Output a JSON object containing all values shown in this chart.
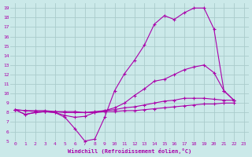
{
  "background_color": "#cbe9e9",
  "grid_color": "#aacccc",
  "line_color": "#aa00aa",
  "xlabel": "Windchill (Refroidissement éolien,°C)",
  "xlim": [
    -0.5,
    23.5
  ],
  "ylim": [
    5,
    19.5
  ],
  "xticks": [
    0,
    1,
    2,
    3,
    4,
    5,
    6,
    7,
    8,
    9,
    10,
    11,
    12,
    13,
    14,
    15,
    16,
    17,
    18,
    19,
    20,
    21,
    22,
    23
  ],
  "yticks": [
    5,
    6,
    7,
    8,
    9,
    10,
    11,
    12,
    13,
    14,
    15,
    16,
    17,
    18,
    19
  ],
  "s1x": [
    0,
    1,
    2,
    3,
    4,
    5,
    6,
    7,
    8,
    9,
    10,
    11,
    12,
    13,
    14,
    15,
    16,
    17,
    18,
    19,
    20,
    21,
    22
  ],
  "s1y": [
    8.3,
    7.8,
    8.0,
    8.1,
    8.0,
    7.5,
    6.3,
    5.0,
    5.2,
    7.5,
    10.3,
    12.1,
    13.5,
    15.1,
    17.3,
    18.2,
    17.8,
    18.5,
    19.0,
    19.0,
    16.8,
    10.3,
    9.3
  ],
  "s2x": [
    0,
    1,
    2,
    3,
    4,
    5,
    6,
    7,
    8,
    9,
    10,
    11,
    12,
    13,
    14,
    15,
    16,
    17,
    18,
    19,
    20,
    21,
    22
  ],
  "s2y": [
    8.3,
    7.8,
    8.0,
    8.1,
    8.0,
    7.7,
    7.5,
    7.6,
    8.0,
    8.2,
    8.5,
    9.0,
    9.8,
    10.5,
    11.3,
    11.5,
    12.0,
    12.5,
    12.8,
    13.0,
    12.2,
    10.3,
    9.3
  ],
  "s3x": [
    0,
    1,
    2,
    3,
    4,
    5,
    6,
    7,
    8,
    9,
    10,
    11,
    12,
    13,
    14,
    15,
    16,
    17,
    18,
    19,
    20,
    21,
    22
  ],
  "s3y": [
    8.3,
    8.2,
    8.2,
    8.2,
    8.1,
    8.1,
    8.1,
    8.0,
    8.1,
    8.2,
    8.3,
    8.5,
    8.6,
    8.8,
    9.0,
    9.2,
    9.3,
    9.5,
    9.5,
    9.5,
    9.4,
    9.3,
    9.3
  ],
  "s4x": [
    0,
    1,
    2,
    3,
    4,
    5,
    6,
    7,
    8,
    9,
    10,
    11,
    12,
    13,
    14,
    15,
    16,
    17,
    18,
    19,
    20,
    21,
    22
  ],
  "s4y": [
    8.3,
    8.2,
    8.1,
    8.1,
    8.1,
    8.0,
    8.0,
    8.0,
    8.0,
    8.1,
    8.1,
    8.2,
    8.2,
    8.3,
    8.4,
    8.5,
    8.6,
    8.7,
    8.8,
    8.9,
    8.9,
    9.0,
    9.0
  ]
}
